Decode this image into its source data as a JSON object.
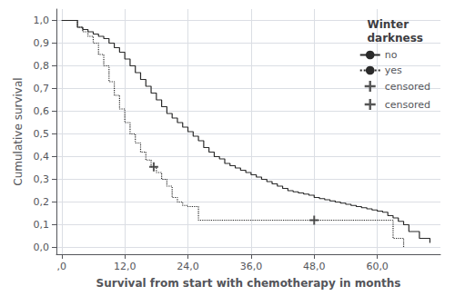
{
  "chart_data": {
    "type": "line",
    "title": "Winter\ndarkness",
    "xlabel": "Survival from start with chemotherapy in months",
    "ylabel": "Cumulative survival",
    "xlim": [
      -1,
      72
    ],
    "ylim": [
      -0.03,
      1.05
    ],
    "xticks": [
      {
        "value": 0,
        "label": ",0"
      },
      {
        "value": 12,
        "label": "12,0"
      },
      {
        "value": 24,
        "label": "24,0"
      },
      {
        "value": 36,
        "label": "36,0"
      },
      {
        "value": 48,
        "label": "48,0"
      },
      {
        "value": 60,
        "label": "60,0"
      }
    ],
    "yticks": [
      {
        "value": 0.0,
        "label": "0,0"
      },
      {
        "value": 0.1,
        "label": "0,1"
      },
      {
        "value": 0.2,
        "label": "0,2"
      },
      {
        "value": 0.3,
        "label": "0,3"
      },
      {
        "value": 0.4,
        "label": "0,4"
      },
      {
        "value": 0.5,
        "label": "0,5"
      },
      {
        "value": 0.6,
        "label": "0,6"
      },
      {
        "value": 0.7,
        "label": "0,7"
      },
      {
        "value": 0.8,
        "label": "0,8"
      },
      {
        "value": 0.9,
        "label": "0,9"
      },
      {
        "value": 1.0,
        "label": "1,0"
      }
    ],
    "grid": true,
    "legend": "upper right",
    "series": [
      {
        "name": "no",
        "type": "step",
        "color": "#2a2a2a",
        "line_style": "solid",
        "x": [
          0,
          2,
          3,
          4,
          5,
          6,
          7,
          8,
          9,
          10,
          11,
          12,
          13,
          14,
          15,
          16,
          17,
          18,
          19,
          20,
          21,
          22,
          23,
          24,
          25,
          26,
          27,
          28,
          29,
          30,
          31,
          32,
          33,
          34,
          35,
          36,
          37,
          38,
          39,
          40,
          41,
          42,
          43,
          44,
          45,
          46,
          47,
          48,
          49,
          50,
          51,
          52,
          53,
          54,
          55,
          56,
          57,
          58,
          59,
          60,
          61,
          62,
          63,
          64,
          65,
          66,
          68,
          70
        ],
        "values": [
          1.0,
          1.0,
          0.97,
          0.96,
          0.95,
          0.94,
          0.93,
          0.92,
          0.9,
          0.88,
          0.86,
          0.83,
          0.8,
          0.77,
          0.74,
          0.71,
          0.68,
          0.65,
          0.62,
          0.59,
          0.57,
          0.55,
          0.53,
          0.51,
          0.49,
          0.47,
          0.44,
          0.42,
          0.4,
          0.39,
          0.37,
          0.36,
          0.35,
          0.34,
          0.33,
          0.32,
          0.31,
          0.3,
          0.29,
          0.28,
          0.27,
          0.26,
          0.25,
          0.245,
          0.24,
          0.235,
          0.23,
          0.22,
          0.215,
          0.21,
          0.205,
          0.2,
          0.195,
          0.19,
          0.185,
          0.18,
          0.175,
          0.17,
          0.165,
          0.16,
          0.155,
          0.14,
          0.13,
          0.115,
          0.1,
          0.07,
          0.04,
          0.02
        ]
      },
      {
        "name": "yes",
        "type": "step",
        "color": "#2a2a2a",
        "line_style": "dotted",
        "x": [
          0,
          2,
          3,
          4,
          5,
          6,
          7,
          8,
          9,
          10,
          11,
          12,
          13,
          14,
          15,
          16,
          17,
          18,
          19,
          20,
          21,
          22,
          23,
          24,
          26,
          60,
          63,
          65
        ],
        "values": [
          1.0,
          1.0,
          0.97,
          0.95,
          0.93,
          0.9,
          0.85,
          0.8,
          0.73,
          0.67,
          0.61,
          0.55,
          0.5,
          0.46,
          0.42,
          0.385,
          0.355,
          0.33,
          0.3,
          0.27,
          0.22,
          0.2,
          0.185,
          0.18,
          0.12,
          0.12,
          0.04,
          0.0
        ]
      },
      {
        "name": "censored",
        "type": "scatter",
        "marker": "plus",
        "color": "#2a2a2a",
        "x": [
          17.5
        ],
        "values": [
          0.355
        ]
      },
      {
        "name": "censored",
        "type": "scatter",
        "marker": "plus",
        "color": "#2a2a2a",
        "x": [
          48
        ],
        "values": [
          0.12
        ]
      }
    ]
  }
}
